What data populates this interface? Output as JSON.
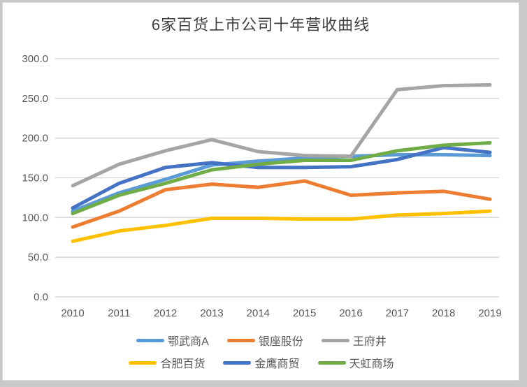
{
  "title": "6家百货上市公司十年营收曲线",
  "colors": {
    "page_background": "#c9c9c9",
    "card_background": "#ffffff",
    "grid": "#d9d9d9",
    "axis_text": "#595959",
    "title_text": "#404040"
  },
  "chart_data": {
    "type": "line",
    "title": "6家百货上市公司十年营收曲线",
    "x": [
      "2010",
      "2011",
      "2012",
      "2013",
      "2014",
      "2015",
      "2016",
      "2017",
      "2018",
      "2019"
    ],
    "series": [
      {
        "name": "鄂武商A",
        "color": "#5B9BD5",
        "values": [
          108,
          131,
          148,
          166,
          171,
          175,
          177,
          179,
          179,
          178
        ]
      },
      {
        "name": "银座股份",
        "color": "#ED7D31",
        "values": [
          88,
          108,
          135,
          142,
          138,
          146,
          128,
          131,
          133,
          123
        ]
      },
      {
        "name": "王府井",
        "color": "#A5A5A5",
        "values": [
          140,
          167,
          184,
          198,
          183,
          178,
          177,
          261,
          266,
          267
        ]
      },
      {
        "name": "合肥百货",
        "color": "#FFC000",
        "values": [
          70,
          83,
          90,
          99,
          99,
          98,
          98,
          103,
          105,
          108
        ]
      },
      {
        "name": "金鹰商贸",
        "color": "#4472C4",
        "values": [
          112,
          143,
          163,
          169,
          163,
          163,
          164,
          173,
          188,
          182
        ]
      },
      {
        "name": "天虹商场",
        "color": "#70AD47",
        "values": [
          105,
          128,
          143,
          160,
          167,
          172,
          172,
          184,
          191,
          194
        ]
      }
    ],
    "ylim": [
      0,
      300
    ],
    "ytick_step": 50,
    "ytick_labels": [
      "300.0",
      "250.0",
      "200.0",
      "150.0",
      "100.0",
      "50.0",
      "0.0"
    ],
    "grid": "horizontal",
    "legend_position": "bottom",
    "legend_rows": 2,
    "legend_items_per_row": 3
  }
}
